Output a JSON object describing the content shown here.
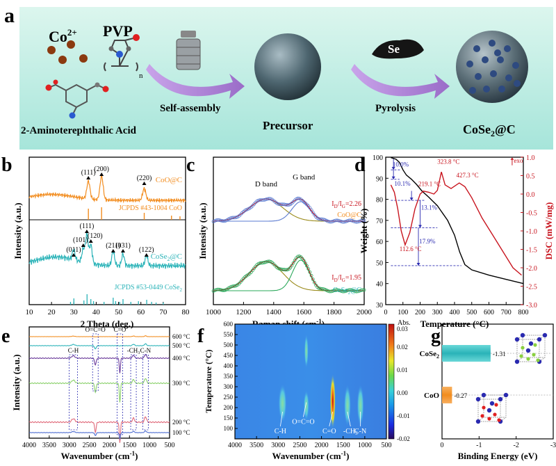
{
  "panel_labels": [
    "a",
    "b",
    "c",
    "d",
    "e",
    "f",
    "g"
  ],
  "colors": {
    "orange": "#f28c1e",
    "teal": "#2ab3b8",
    "dsc_red": "#c8141e",
    "blue_dash": "#2a2ab0",
    "banner_top": "#d8f4ec",
    "banner_bottom": "#a8e6dc",
    "arrow_purple": "#b48ed6"
  },
  "schematic": {
    "co_label": "Co",
    "co_sup": "2+",
    "pvp_label": "PVP",
    "pvp_n": "n",
    "ligand_label": "2-Aminoterephthalic Acid",
    "step1_label": "Self-assembly",
    "precursor_label": "Precursor",
    "se_label": "Se",
    "step2_label": "Pyrolysis",
    "product_label_main": "CoSe",
    "product_label_sub": "2",
    "product_label_tail": "@C"
  },
  "chart_data": [
    {
      "panel": "b",
      "type": "line",
      "xlabel": "2 Theta (deg.)",
      "ylabel": "Intensity (a.u.)",
      "xlim": [
        10,
        80
      ],
      "xticks": [
        "10",
        "20",
        "30",
        "40",
        "50",
        "60",
        "70",
        "80"
      ],
      "series": [
        {
          "name": "CoO@C",
          "peaks": [
            {
              "x": 36.5,
              "label": "(111)"
            },
            {
              "x": 42.4,
              "label": "(200)"
            },
            {
              "x": 61.5,
              "label": "(220)"
            }
          ],
          "reference": "JCPDS #43-1004 CoO",
          "reference_lines": [
            36.5,
            42.4,
            61.5,
            73.7,
            77.5
          ]
        },
        {
          "name": "CoSe2@C",
          "name_main": "CoSe",
          "name_sub": "2",
          "name_tail": "@C",
          "peaks": [
            {
              "x": 29.9,
              "label": "(011)"
            },
            {
              "x": 34.2,
              "label": "(101)"
            },
            {
              "x": 35.8,
              "label": "(111)"
            },
            {
              "x": 37.6,
              "label": "(120)"
            },
            {
              "x": 47.6,
              "label": "(211)"
            },
            {
              "x": 52.0,
              "label": "(031)"
            },
            {
              "x": 62.5,
              "label": "(122)"
            }
          ],
          "reference": "JCPDS #53-0449 CoSe2",
          "reference_main": "JCPDS #53-0449 CoSe",
          "reference_sub": "2",
          "reference_lines": [
            28.5,
            30.0,
            34.5,
            35.9,
            37.6,
            38.8,
            43.5,
            47.6,
            48.7,
            50.5,
            52.0,
            55.5,
            58.9,
            62.6,
            64.8,
            66.8,
            70.0
          ]
        }
      ]
    },
    {
      "panel": "c",
      "type": "line",
      "xlabel": "Raman shift (cm",
      "xlabel_sup": "-1",
      "xlabel_tail": ")",
      "ylabel": "Intensity (a.u.)",
      "xlim": [
        1000,
        2000
      ],
      "xticks": [
        "1000",
        "1200",
        "1400",
        "1600",
        "1800",
        "2000"
      ],
      "d_band_label": "D band",
      "g_band_label": "G band",
      "d_band_center": 1350,
      "g_band_center": 1580,
      "series": [
        {
          "name": "CoO@C",
          "ratio_label": "I",
          "ratio_sub_d": "D",
          "ratio_mid": "/I",
          "ratio_sub_g": "G",
          "ratio_value": "=2.26",
          "id_ig": 2.26
        },
        {
          "name": "CoSe2@C",
          "name_main": "CoSe",
          "name_sub": "2",
          "name_tail": "@C",
          "ratio_label": "I",
          "ratio_sub_d": "D",
          "ratio_mid": "/I",
          "ratio_sub_g": "G",
          "ratio_value": "=1.95",
          "id_ig": 1.95
        }
      ]
    },
    {
      "panel": "d",
      "type": "line",
      "xlabel": "Temperature (",
      "xlabel_deg": "°C",
      "xlabel_tail": ")",
      "ylabel": "Weight (%)",
      "ylabel_right": "DSC (mW/mg)",
      "exo_label": "exo",
      "xlim": [
        0,
        800
      ],
      "ylim": [
        30,
        100
      ],
      "ylim_right": [
        -3.0,
        1.0
      ],
      "xticks": [
        "0",
        "100",
        "200",
        "300",
        "400",
        "500",
        "600",
        "700",
        "800"
      ],
      "yticks": [
        "30",
        "40",
        "50",
        "60",
        "70",
        "80",
        "90",
        "100"
      ],
      "yticks_right": [
        "-3.0",
        "-2.5",
        "-2.0",
        "-1.5",
        "-1.0",
        "-0.5",
        "0.0",
        "0.5",
        "1.0"
      ],
      "tga": [
        [
          30,
          99.8
        ],
        [
          60,
          99
        ],
        [
          80,
          97.5
        ],
        [
          100,
          94
        ],
        [
          120,
          91.5
        ],
        [
          150,
          89.5
        ],
        [
          180,
          87
        ],
        [
          210,
          84
        ],
        [
          250,
          81
        ],
        [
          300,
          77
        ],
        [
          330,
          73.5
        ],
        [
          360,
          70
        ],
        [
          400,
          63
        ],
        [
          430,
          55
        ],
        [
          460,
          49
        ],
        [
          500,
          46.5
        ],
        [
          600,
          44
        ],
        [
          700,
          42
        ],
        [
          800,
          40
        ]
      ],
      "dsc": [
        [
          30,
          0.25
        ],
        [
          50,
          0.05
        ],
        [
          70,
          -0.4
        ],
        [
          90,
          -1.0
        ],
        [
          112.6,
          -1.38
        ],
        [
          140,
          -1.05
        ],
        [
          170,
          -0.4
        ],
        [
          200,
          0.0
        ],
        [
          219.1,
          0.08
        ],
        [
          250,
          0.05
        ],
        [
          280,
          0.0
        ],
        [
          300,
          0.1
        ],
        [
          323.8,
          0.6
        ],
        [
          345,
          0.25
        ],
        [
          380,
          0.15
        ],
        [
          427.3,
          0.3
        ],
        [
          460,
          0.2
        ],
        [
          500,
          -0.1
        ],
        [
          560,
          -0.65
        ],
        [
          620,
          -1.1
        ],
        [
          680,
          -1.55
        ],
        [
          740,
          -2.0
        ],
        [
          790,
          -2.2
        ]
      ],
      "annotations": [
        "10.0%",
        "10.1%",
        "13.1%",
        "17.9%",
        "112.6 °C",
        "219.1 °C",
        "323.8 °C",
        "427.3 °C"
      ]
    },
    {
      "panel": "e",
      "type": "line",
      "xlabel": "Wavenumber (cm",
      "xlabel_sup": "-1",
      "xlabel_tail": ")",
      "ylabel": "Intensity (a.u.)",
      "xlim": [
        4000,
        500
      ],
      "xticks": [
        "4000",
        "3500",
        "3000",
        "2500",
        "2000",
        "1500",
        "1000",
        "500"
      ],
      "series": [
        {
          "name": "600 °C",
          "color": "#f28c1e"
        },
        {
          "name": "500 °C",
          "color": "#2ab3b8"
        },
        {
          "name": "400 °C",
          "color": "#6a3a9a"
        },
        {
          "name": "300 °C",
          "color": "#8ad06a"
        },
        {
          "name": "200 °C",
          "color": "#e06a7a"
        },
        {
          "name": "100 °C",
          "color": "#4a6ad0"
        }
      ],
      "band_labels": [
        {
          "label": "O=C=O",
          "x": 2350
        },
        {
          "label": "C=O",
          "x": 1740
        },
        {
          "label": "C-H",
          "x": 2900
        },
        {
          "label": "-CH3",
          "label_main": "-CH",
          "label_sub": "3",
          "x": 1400
        },
        {
          "label": "C-N",
          "x": 1100
        }
      ]
    },
    {
      "panel": "f",
      "type": "heatmap",
      "xlabel": "Wavenumber (cm",
      "xlabel_sup": "-1",
      "xlabel_tail": ")",
      "ylabel": "Temperature (",
      "ylabel_deg": "°C",
      "ylabel_tail": ")",
      "xlim": [
        4000,
        500
      ],
      "ylim": [
        50,
        600
      ],
      "xticks": [
        "4000",
        "3500",
        "3000",
        "2500",
        "2000",
        "1500",
        "1000",
        "500"
      ],
      "yticks": [
        "100",
        "150",
        "200",
        "250",
        "300",
        "350",
        "400",
        "450",
        "500",
        "550",
        "600"
      ],
      "colorbar_title": "Abs.",
      "colorbar_range": [
        -0.02,
        0.03
      ],
      "colorbar_ticks": [
        "0.03",
        "0.02",
        "0.01",
        "0.00",
        "-0.01",
        "-0.02"
      ],
      "band_labels": [
        {
          "label": "C-H",
          "x": 2900
        },
        {
          "label": "O=C=O",
          "x": 2350
        },
        {
          "label": "C=O",
          "x": 1740
        },
        {
          "label": "-CH3",
          "label_main": "-CH",
          "label_sub": "3",
          "x": 1400
        },
        {
          "label": "C-N",
          "x": 1100
        }
      ]
    },
    {
      "panel": "g",
      "type": "bar",
      "xlabel": "Binding Energy (eV)",
      "xlim": [
        0,
        -3
      ],
      "xticks": [
        "0",
        "-1",
        "-2",
        "-3"
      ],
      "categories": [
        "CoSe2",
        "CoO"
      ],
      "category_labels": [
        {
          "main": "CoSe",
          "sub": "2"
        },
        {
          "main": "CoO",
          "sub": ""
        }
      ],
      "values": [
        -1.31,
        -0.27
      ],
      "value_labels": [
        "-1.31",
        "-0.27"
      ]
    }
  ]
}
